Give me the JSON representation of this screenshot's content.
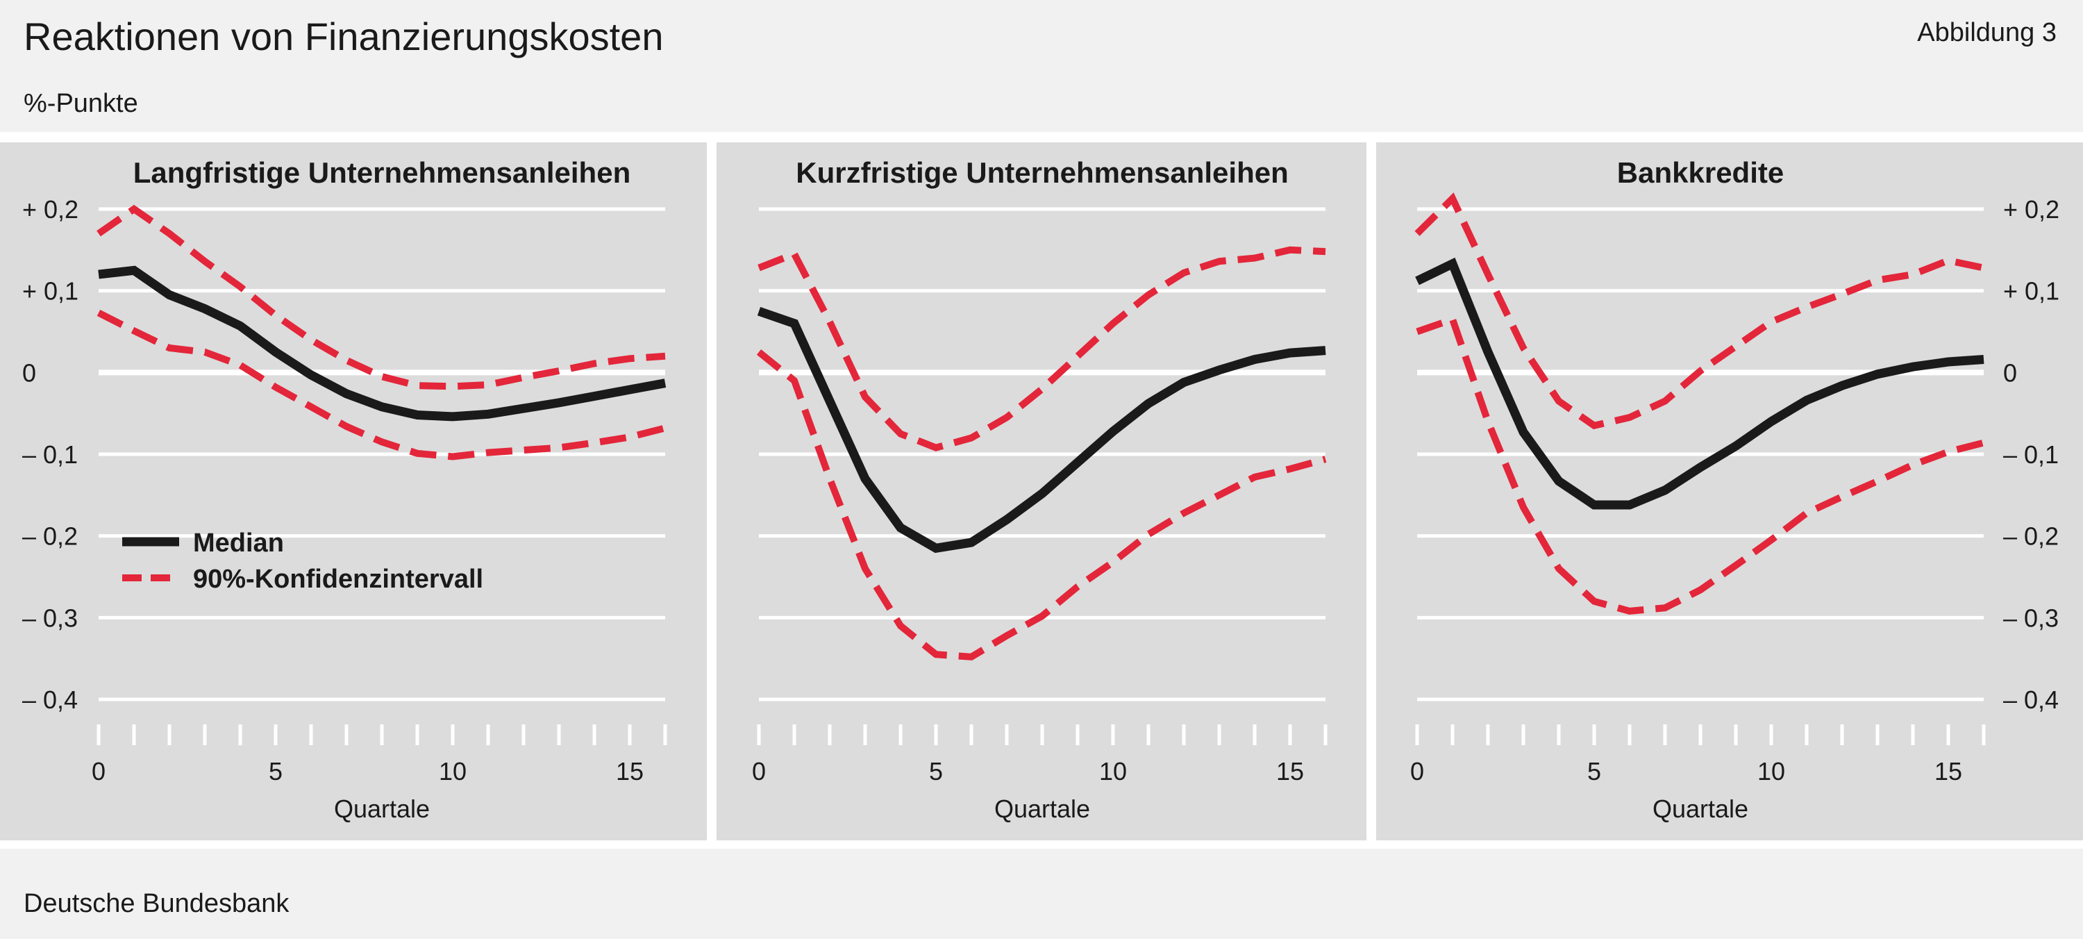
{
  "header": {
    "title": "Reaktionen von Finanzierungskosten",
    "figure_number": "Abbildung 3",
    "unit": "%-Punkte"
  },
  "footer": {
    "source": "Deutsche Bundesbank"
  },
  "colors": {
    "median": "#1a1a1a",
    "confidence": "#e3263a",
    "panel_bg": "#dcdcdc",
    "gridline": "#ffffff"
  },
  "legend": {
    "position": "lower-left of first panel",
    "items": [
      {
        "label": "Median",
        "style": "solid",
        "color": "#1a1a1a"
      },
      {
        "label": "90%-Konfidenzintervall",
        "style": "dashed",
        "color": "#e3263a"
      }
    ]
  },
  "chart_data": [
    {
      "type": "line",
      "title": "Langfristige Unternehmensanleihen",
      "xlabel": "Quartale",
      "xlim": [
        0,
        16
      ],
      "ylim": [
        -0.4,
        0.2
      ],
      "xticks": [
        "0",
        "5",
        "10",
        "15"
      ],
      "yticks": [
        "+ 0,2",
        "+ 0,1",
        "0",
        "– 0,1",
        "– 0,2",
        "– 0,3",
        "– 0,4"
      ],
      "y_axis_side": "left",
      "grid": true,
      "x": [
        0,
        1,
        2,
        3,
        4,
        5,
        6,
        7,
        8,
        9,
        10,
        11,
        12,
        13,
        14,
        15,
        16
      ],
      "series": [
        {
          "name": "Median",
          "style": "solid",
          "values": [
            0.12,
            0.125,
            0.095,
            0.078,
            0.057,
            0.025,
            -0.003,
            -0.026,
            -0.042,
            -0.052,
            -0.054,
            -0.051,
            -0.044,
            -0.037,
            -0.029,
            -0.021,
            -0.013
          ]
        },
        {
          "name": "90%-Konfidenzintervall",
          "style": "dashed",
          "values": [
            0.17,
            0.2,
            0.17,
            0.136,
            0.105,
            0.07,
            0.04,
            0.015,
            -0.005,
            -0.016,
            -0.017,
            -0.015,
            -0.006,
            0.002,
            0.011,
            0.017,
            0.02
          ]
        },
        {
          "name": "90%-Konfidenzintervall",
          "style": "dashed",
          "values": [
            0.073,
            0.051,
            0.03,
            0.025,
            0.009,
            -0.018,
            -0.042,
            -0.066,
            -0.085,
            -0.099,
            -0.103,
            -0.098,
            -0.095,
            -0.092,
            -0.086,
            -0.079,
            -0.068
          ]
        }
      ]
    },
    {
      "type": "line",
      "title": "Kurzfristige Unternehmensanleihen",
      "xlabel": "Quartale",
      "xlim": [
        0,
        16
      ],
      "ylim": [
        -0.4,
        0.2
      ],
      "xticks": [
        "0",
        "5",
        "10",
        "15"
      ],
      "yticks": [],
      "y_axis_side": "none",
      "grid": true,
      "x": [
        0,
        1,
        2,
        3,
        4,
        5,
        6,
        7,
        8,
        9,
        10,
        11,
        12,
        13,
        14,
        15,
        16
      ],
      "series": [
        {
          "name": "Median",
          "style": "solid",
          "values": [
            0.075,
            0.06,
            -0.035,
            -0.13,
            -0.19,
            -0.215,
            -0.208,
            -0.18,
            -0.148,
            -0.11,
            -0.072,
            -0.038,
            -0.012,
            0.003,
            0.016,
            0.024,
            0.027
          ]
        },
        {
          "name": "90%-Konfidenzintervall",
          "style": "dashed",
          "values": [
            0.128,
            0.145,
            0.062,
            -0.03,
            -0.075,
            -0.092,
            -0.08,
            -0.055,
            -0.02,
            0.02,
            0.06,
            0.095,
            0.122,
            0.136,
            0.14,
            0.15,
            0.148
          ]
        },
        {
          "name": "90%-Konfidenzintervall",
          "style": "dashed",
          "values": [
            0.025,
            -0.01,
            -0.13,
            -0.24,
            -0.31,
            -0.345,
            -0.348,
            -0.322,
            -0.298,
            -0.262,
            -0.232,
            -0.198,
            -0.172,
            -0.15,
            -0.128,
            -0.118,
            -0.106
          ]
        }
      ]
    },
    {
      "type": "line",
      "title": "Bankkredite",
      "xlabel": "Quartale",
      "xlim": [
        0,
        16
      ],
      "ylim": [
        -0.4,
        0.2
      ],
      "xticks": [
        "0",
        "5",
        "10",
        "15"
      ],
      "yticks": [
        "+ 0,2",
        "+ 0,1",
        "0",
        "– 0,1",
        "– 0,2",
        "– 0,3",
        "– 0,4"
      ],
      "y_axis_side": "right",
      "grid": true,
      "x": [
        0,
        1,
        2,
        3,
        4,
        5,
        6,
        7,
        8,
        9,
        10,
        11,
        12,
        13,
        14,
        15,
        16
      ],
      "series": [
        {
          "name": "Median",
          "style": "solid",
          "values": [
            0.112,
            0.133,
            0.025,
            -0.073,
            -0.133,
            -0.162,
            -0.162,
            -0.144,
            -0.116,
            -0.09,
            -0.06,
            -0.034,
            -0.016,
            -0.002,
            0.007,
            0.013,
            0.016
          ]
        },
        {
          "name": "90%-Konfidenzintervall",
          "style": "dashed",
          "values": [
            0.17,
            0.213,
            0.12,
            0.03,
            -0.035,
            -0.065,
            -0.055,
            -0.035,
            0.002,
            0.032,
            0.062,
            0.08,
            0.096,
            0.113,
            0.12,
            0.137,
            0.128
          ]
        },
        {
          "name": "90%-Konfidenzintervall",
          "style": "dashed",
          "values": [
            0.05,
            0.065,
            -0.06,
            -0.165,
            -0.24,
            -0.28,
            -0.292,
            -0.288,
            -0.266,
            -0.236,
            -0.205,
            -0.172,
            -0.152,
            -0.133,
            -0.113,
            -0.097,
            -0.086
          ]
        }
      ]
    }
  ]
}
